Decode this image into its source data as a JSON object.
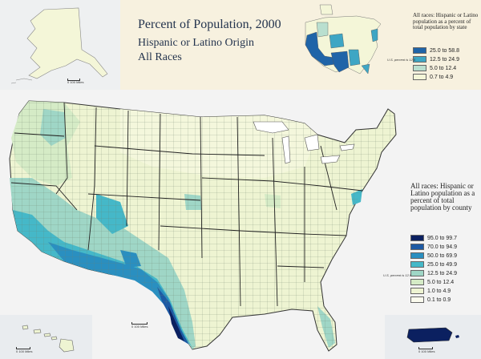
{
  "header": {
    "title": "Percent of Population, 2000",
    "subtitle": "Hispanic or Latino Origin",
    "subtitle2": "All Races"
  },
  "alaska_scale": "0 100 Miles",
  "state_legend": {
    "title": "All races: Hispanic or Latino population as a percent of total population by state",
    "us_percent": "U.S. percent is 12.5",
    "classes": [
      {
        "label": "25.0 to 58.8",
        "color": "#1f64a8"
      },
      {
        "label": "12.5 to 24.9",
        "color": "#3ea6c4"
      },
      {
        "label": "5.0 to 12.4",
        "color": "#b9dfcf"
      },
      {
        "label": "0.7 to 4.9",
        "color": "#f4f6d8"
      }
    ]
  },
  "county_legend": {
    "title": "All races: Hispanic or Latino population as a percent of total population by county",
    "us_percent": "U.S. percent is 12.5",
    "classes": [
      {
        "label": "95.0 to 99.7",
        "color": "#0b2060"
      },
      {
        "label": "70.0 to 94.9",
        "color": "#1d5aa4"
      },
      {
        "label": "50.0 to 69.9",
        "color": "#2a8fc0"
      },
      {
        "label": "25.0 to 49.9",
        "color": "#45b8c8"
      },
      {
        "label": "12.5 to 24.9",
        "color": "#9fd6c6"
      },
      {
        "label": "5.0 to 12.4",
        "color": "#d5ebc6"
      },
      {
        "label": "1.0 to 4.9",
        "color": "#eef4d2"
      },
      {
        "label": "0.1 to 0.9",
        "color": "#fbfbee"
      }
    ]
  },
  "main_scale": "0 100 Miles",
  "hawaii_scale": "0 100 Miles",
  "pr_scale": "0 100 Miles"
}
